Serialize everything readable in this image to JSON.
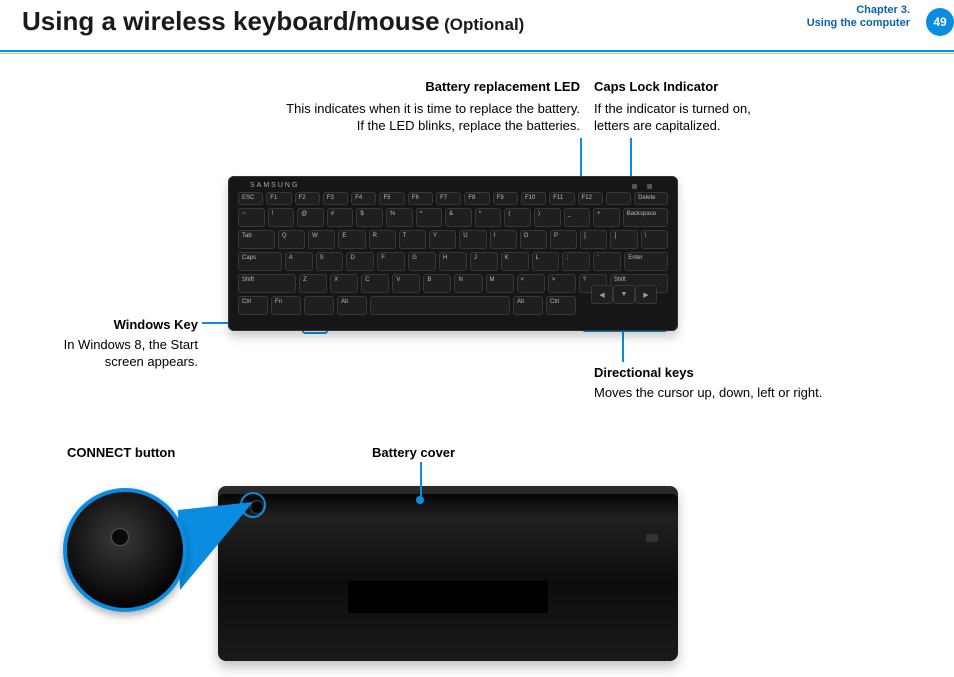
{
  "header": {
    "title": "Using a wireless keyboard/mouse",
    "subtitle": "(Optional)",
    "chapter_line1": "Chapter 3.",
    "chapter_line2": "Using the computer",
    "page_number": "49"
  },
  "accent_color": "#0a8de0",
  "callouts": {
    "battery_led": {
      "title": "Battery replacement LED",
      "desc_l1": "This indicates when it is time to replace the battery.",
      "desc_l2": "If the LED blinks, replace the batteries."
    },
    "caps_lock": {
      "title": "Caps Lock Indicator",
      "desc_l1": "If the indicator is turned on,",
      "desc_l2": "letters are capitalized."
    },
    "windows_key": {
      "title": "Windows Key",
      "desc_l1": "In Windows 8, the Start",
      "desc_l2": "screen appears."
    },
    "directional": {
      "title": "Directional keys",
      "desc": "Moves the cursor up, down, left or right."
    },
    "connect": {
      "title": "CONNECT button"
    },
    "battery_cover": {
      "title": "Battery cover"
    }
  },
  "keyboard": {
    "brand": "SAMSUNG",
    "rows": {
      "fn": [
        "ESC",
        "F1",
        "F2",
        "F3",
        "F4",
        "F5",
        "F6",
        "F7",
        "F8",
        "F9",
        "F10",
        "F11",
        "F12",
        "",
        "Delete"
      ],
      "num": [
        "~",
        "!",
        "@",
        "#",
        "$",
        "%",
        "^",
        "&",
        "*",
        "(",
        ")",
        "_",
        "+",
        "Backspace"
      ],
      "q": [
        "Tab",
        "Q",
        "W",
        "E",
        "R",
        "T",
        "Y",
        "U",
        "I",
        "O",
        "P",
        "[",
        "]",
        "\\"
      ],
      "a": [
        "Caps",
        "A",
        "S",
        "D",
        "F",
        "G",
        "H",
        "J",
        "K",
        "L",
        ";",
        "'",
        "Enter"
      ],
      "z": [
        "Shift",
        "Z",
        "X",
        "C",
        "V",
        "B",
        "N",
        "M",
        "<",
        ">",
        "?",
        "Shift"
      ],
      "sp": [
        "Ctrl",
        "Fn",
        "",
        "Alt",
        "",
        "Alt",
        "Ctrl"
      ]
    },
    "arrows": {
      "up": "▲",
      "down": "▼",
      "left": "◀",
      "right": "▶"
    }
  }
}
